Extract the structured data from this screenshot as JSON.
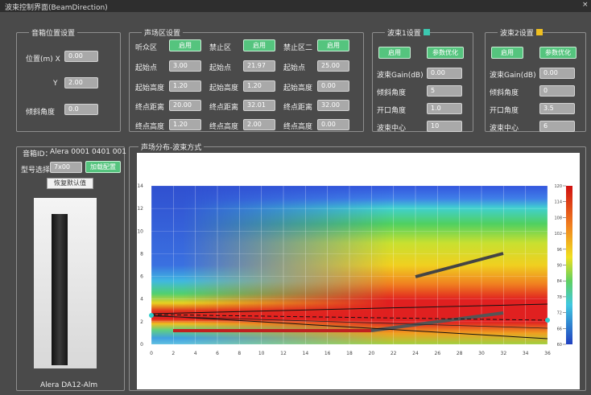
{
  "window": {
    "title": "波束控制界面(BeamDirection)",
    "close": "×"
  },
  "speaker_position": {
    "title": "音箱位置设置",
    "x_label": "位置(m) X",
    "x_value": "0.00",
    "y_label": "Y",
    "y_value": "2.00",
    "tilt_label": "倾斜角度",
    "tilt_value": "0.0"
  },
  "zones": {
    "title": "声场区设置",
    "labels": {
      "start": "起始点",
      "start_height": "起始高度",
      "end": "终点距离",
      "end_height": "终点高度"
    },
    "columns": [
      {
        "name": "听众区",
        "button": "启用",
        "start": "3.00",
        "start_height": "1.20",
        "end": "20.00",
        "end_height": "1.20"
      },
      {
        "name": "禁止区",
        "button": "启用",
        "start": "21.97",
        "start_height": "1.20",
        "end": "32.01",
        "end_height": "2.00"
      },
      {
        "name": "禁止区二",
        "button": "启用",
        "start": "25.00",
        "start_height": "0.00",
        "end": "32.00",
        "end_height": "0.00"
      }
    ]
  },
  "beam1": {
    "title": "波束1设置",
    "enable": "启用",
    "optimize": "参数优化",
    "gain_label": "波束Gain(dB)",
    "gain": "0.00",
    "tilt_label": "倾斜角度",
    "tilt": "5",
    "opening_label": "开口角度",
    "opening": "1.0",
    "center_label": "波束中心",
    "center": "10"
  },
  "beam2": {
    "title": "波束2设置",
    "enable": "启用",
    "optimize": "参数优化",
    "gain_label": "波束Gain(dB)",
    "gain": "0.00",
    "tilt_label": "倾斜角度",
    "tilt": "0",
    "opening_label": "开口角度",
    "opening": "3.5",
    "center_label": "波束中心",
    "center": "6"
  },
  "speaker": {
    "id_label": "音箱ID：",
    "id": "Alera 0001 0401 001",
    "model_label": "型号选择：",
    "model": "7x00",
    "load": "加载配置",
    "reset": "恢复默认值",
    "name": "Alera DA12-Alm"
  },
  "field_chart": {
    "title": "声场分布-波束方式",
    "xlim": [
      0,
      36
    ],
    "xticks": [
      0,
      2,
      4,
      6,
      8,
      10,
      12,
      14,
      16,
      18,
      20,
      22,
      24,
      26,
      28,
      30,
      32,
      34,
      36
    ],
    "ylim": [
      0,
      14
    ],
    "yticks": [
      0,
      2,
      4,
      6,
      8,
      10,
      12,
      14
    ],
    "colorbar_lim": [
      60,
      120
    ],
    "colorbar_ticks": [
      60,
      66,
      72,
      78,
      84,
      90,
      96,
      102,
      108,
      114,
      120
    ]
  }
}
